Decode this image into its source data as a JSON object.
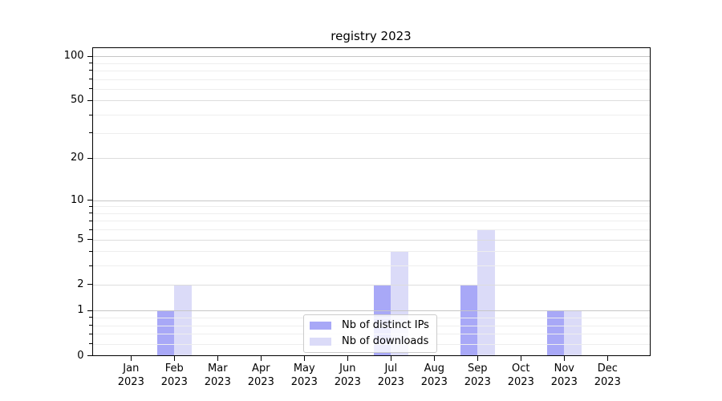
{
  "chart_data": {
    "type": "bar",
    "title": "registry 2023",
    "categories": [
      "Jan",
      "Feb",
      "Mar",
      "Apr",
      "May",
      "Jun",
      "Jul",
      "Aug",
      "Sep",
      "Oct",
      "Nov",
      "Dec"
    ],
    "category_year": "2023",
    "series": [
      {
        "name": "Nb of distinct IPs",
        "color": "#a8a8f7",
        "values": [
          0,
          1,
          0,
          0,
          0,
          0,
          2,
          0,
          2,
          0,
          1,
          0
        ]
      },
      {
        "name": "Nb of downloads",
        "color": "#dbdbf8",
        "values": [
          0,
          2,
          0,
          0,
          0,
          0,
          4,
          0,
          6,
          0,
          1,
          0
        ]
      }
    ],
    "yscale": "log10(1+x)",
    "yticks_major": [
      0,
      1,
      2,
      5,
      10,
      20,
      50,
      100
    ],
    "yticks_minor": [
      0.2,
      0.4,
      0.6,
      0.8,
      3,
      4,
      6,
      7,
      8,
      9,
      30,
      40,
      60,
      70,
      80,
      90
    ],
    "ylim": [
      0,
      115
    ],
    "xlabel": "",
    "ylabel": "",
    "grid": true,
    "legend_position": "lower center"
  },
  "colors": {
    "grid_decade": "#c6c6c6",
    "grid_major": "#dddddd",
    "grid_minor": "#eeeeee",
    "spine": "#000000",
    "legend_border": "#cbcbcb"
  }
}
